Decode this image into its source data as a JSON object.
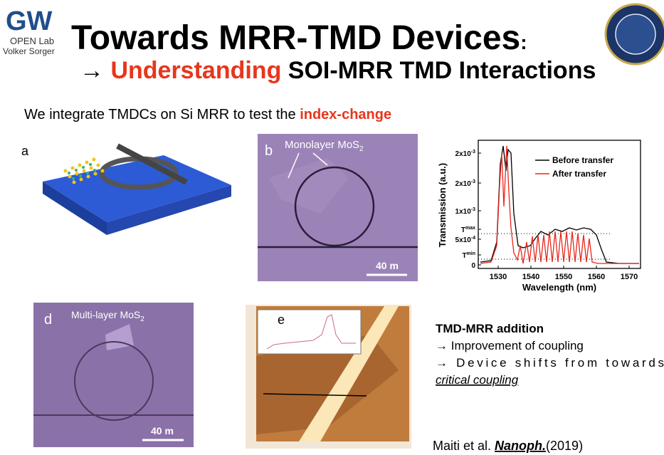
{
  "header": {
    "logo_gw": "GW",
    "logo_lab": "OPEN Lab",
    "logo_name": "Volker Sorger",
    "title": "Towards MRR-TMD Devices",
    "title_colon": ":",
    "subtitle_arrow": "→ ",
    "subtitle_highlight": "Understanding",
    "subtitle_rest": " SOI-MRR TMD Interactions"
  },
  "intro": {
    "text": "We integrate TMDCs on Si MRR to test the ",
    "highlight": "index-change"
  },
  "panels": {
    "a": {
      "label": "a"
    },
    "b": {
      "label": "b",
      "annotation": "Monolayer MoS",
      "annotation_sub": "2",
      "scale": "40 m"
    },
    "c": {
      "ylabel": "Transmission (a.u.)",
      "xlabel": "Wavelength (nm)",
      "yticks": [
        {
          "base": "2x10",
          "exp": "-3"
        },
        {
          "base": "2x10",
          "exp": "-3"
        },
        {
          "base": "1x10",
          "exp": "-3"
        },
        {
          "base": "T",
          "exp": "max"
        },
        {
          "base": "5x10",
          "exp": "-4"
        },
        {
          "base": "T",
          "exp": "min"
        },
        {
          "base": "0",
          "exp": ""
        }
      ],
      "xticks": [
        "1530",
        "1540",
        "1550",
        "1560",
        "1570"
      ],
      "legend": [
        "Before transfer",
        "After transfer"
      ]
    },
    "d": {
      "label": "d",
      "annotation": "Multi-layer MoS",
      "annotation_sub": "2",
      "scale": "40 m"
    },
    "e": {
      "label": "e"
    }
  },
  "notes": {
    "heading": "TMD-MRR addition",
    "items": [
      "→ Improvement of coupling",
      "→  Device shifts from towards"
    ],
    "emphasis": "critical coupling"
  },
  "citation": {
    "authors": "Maiti et al. ",
    "journal": "Nanoph.",
    "year": "(2019)"
  }
}
